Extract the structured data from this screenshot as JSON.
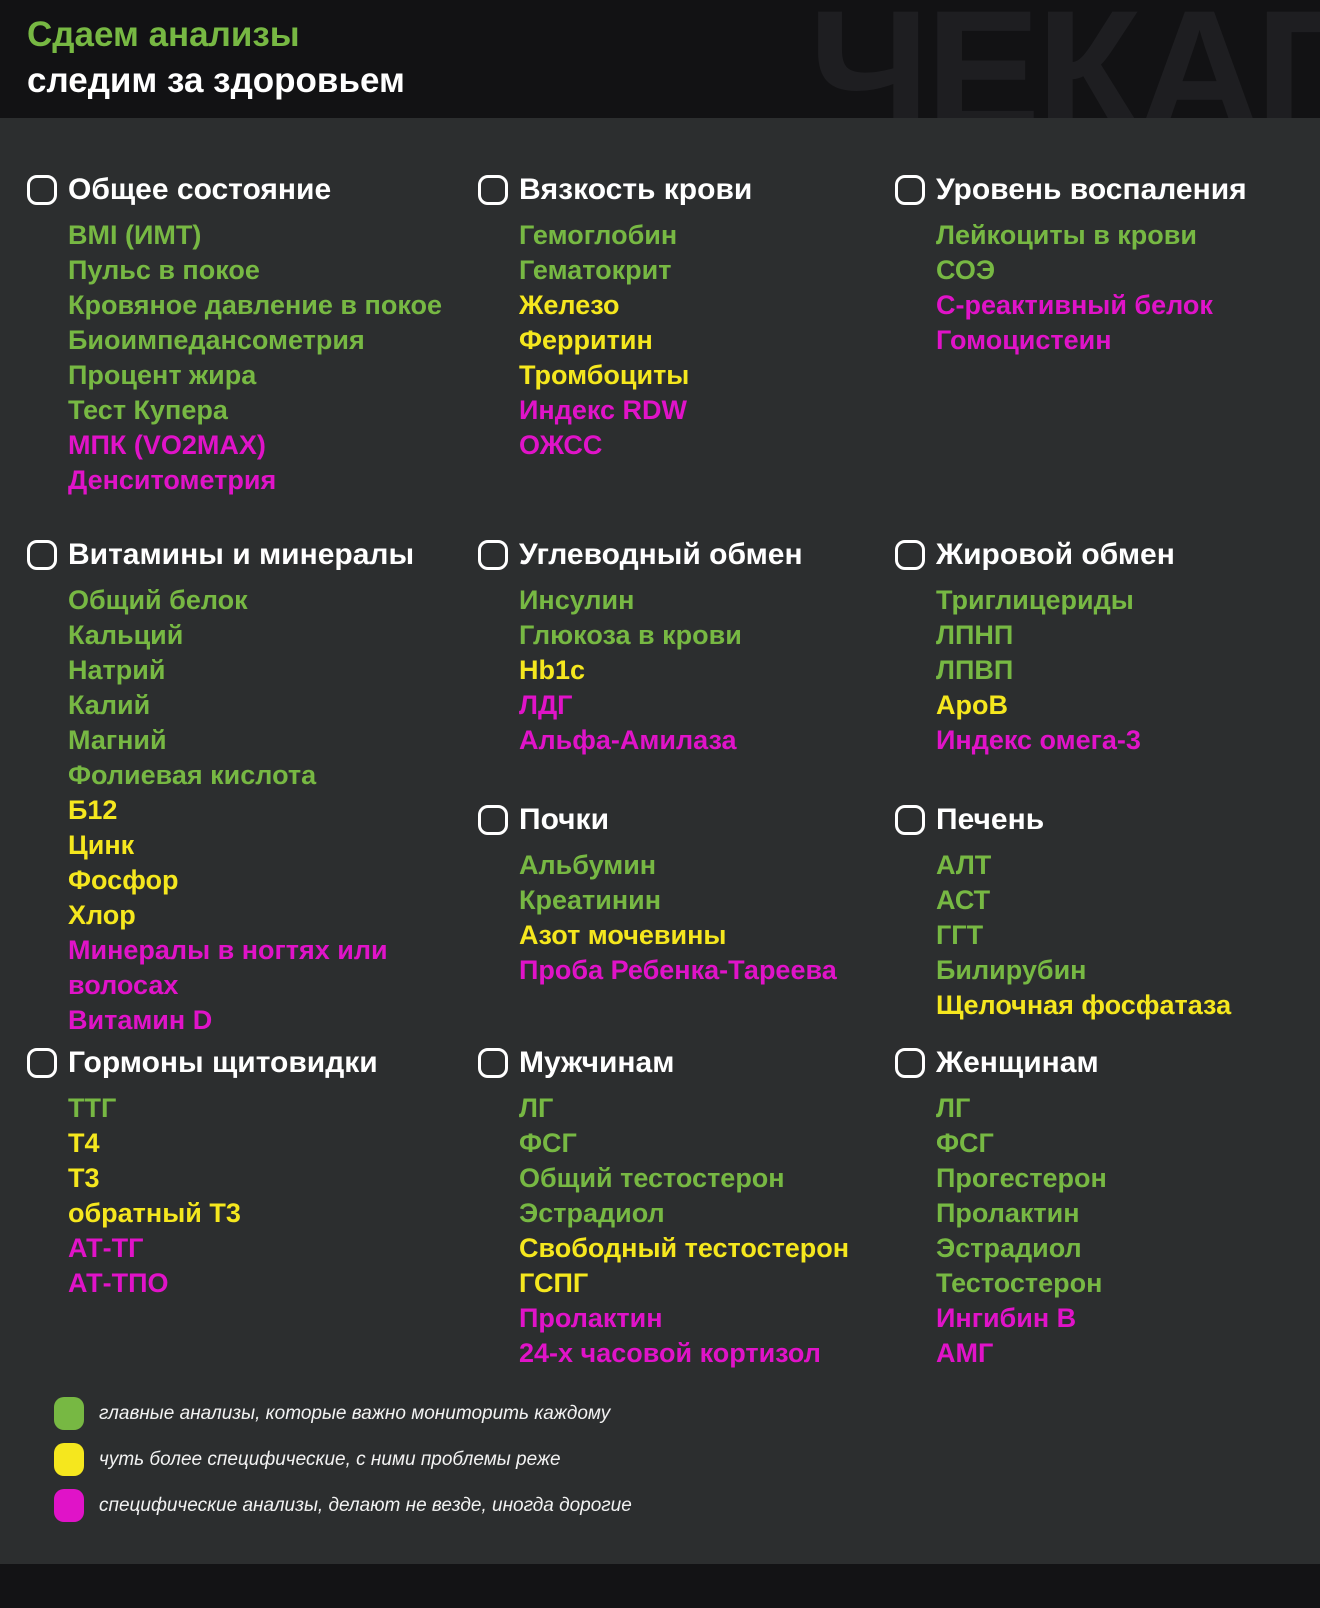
{
  "header": {
    "title_line1": "Сдаем анализы",
    "title_line2": "следим за здоровьем",
    "watermark": "ЧЕКАП"
  },
  "colors": {
    "core": "#77b843",
    "mid": "#f5e71e",
    "rare": "#e013c8"
  },
  "columns": [
    {
      "sections": [
        {
          "title": "Общее состояние",
          "items": [
            {
              "label": "BMI (ИМТ)",
              "level": "core"
            },
            {
              "label": "Пульс в покое",
              "level": "core"
            },
            {
              "label": "Кровяное давление в покое",
              "level": "core"
            },
            {
              "label": "Биоимпедансометрия",
              "level": "core"
            },
            {
              "label": "Процент жира",
              "level": "core"
            },
            {
              "label": "Тест Купера",
              "level": "core"
            },
            {
              "label": "МПК (VO2MAX)",
              "level": "rare"
            },
            {
              "label": "Денситометрия",
              "level": "rare"
            }
          ]
        },
        {
          "title": "Витамины и минералы",
          "items": [
            {
              "label": "Общий белок",
              "level": "core"
            },
            {
              "label": "Кальций",
              "level": "core"
            },
            {
              "label": "Натрий",
              "level": "core"
            },
            {
              "label": "Калий",
              "level": "core"
            },
            {
              "label": "Магний",
              "level": "core"
            },
            {
              "label": "Фолиевая кислота",
              "level": "core"
            },
            {
              "label": "Б12",
              "level": "mid"
            },
            {
              "label": "Цинк",
              "level": "mid"
            },
            {
              "label": "Фосфор",
              "level": "mid"
            },
            {
              "label": "Хлор",
              "level": "mid"
            },
            {
              "label": "Минералы в ногтях или волосах",
              "level": "rare"
            },
            {
              "label": "Витамин D",
              "level": "rare"
            }
          ]
        },
        {
          "title": "Гормоны щитовидки",
          "items": [
            {
              "label": "ТТГ",
              "level": "core"
            },
            {
              "label": "Т4",
              "level": "mid"
            },
            {
              "label": "Т3",
              "level": "mid"
            },
            {
              "label": "обратный Т3",
              "level": "mid"
            },
            {
              "label": "АТ-ТГ",
              "level": "rare"
            },
            {
              "label": "АТ-ТПО",
              "level": "rare"
            }
          ]
        }
      ]
    },
    {
      "sections": [
        {
          "title": "Вязкость крови",
          "items": [
            {
              "label": "Гемоглобин",
              "level": "core"
            },
            {
              "label": "Гематокрит",
              "level": "core"
            },
            {
              "label": "Железо",
              "level": "mid"
            },
            {
              "label": "Ферритин",
              "level": "mid"
            },
            {
              "label": "Тромбоциты",
              "level": "mid"
            },
            {
              "label": "Индекс RDW",
              "level": "rare"
            },
            {
              "label": "ОЖСС",
              "level": "rare"
            }
          ]
        },
        {
          "title": "Углеводный обмен",
          "items": [
            {
              "label": "Инсулин",
              "level": "core"
            },
            {
              "label": "Глюкоза в крови",
              "level": "core"
            },
            {
              "label": "Hb1c",
              "level": "mid"
            },
            {
              "label": "ЛДГ",
              "level": "rare"
            },
            {
              "label": "Альфа-Амилаза",
              "level": "rare"
            }
          ]
        },
        {
          "title": "Почки",
          "items": [
            {
              "label": "Альбумин",
              "level": "core"
            },
            {
              "label": "Креатинин",
              "level": "core"
            },
            {
              "label": "Азот мочевины",
              "level": "mid"
            },
            {
              "label": "Проба Ребенка-Тареева",
              "level": "rare"
            }
          ]
        },
        {
          "title": "Мужчинам",
          "items": [
            {
              "label": "ЛГ",
              "level": "core"
            },
            {
              "label": "ФСГ",
              "level": "core"
            },
            {
              "label": "Общий тестостерон",
              "level": "core"
            },
            {
              "label": "Эстрадиол",
              "level": "core"
            },
            {
              "label": "Свободный тестостерон",
              "level": "mid"
            },
            {
              "label": "ГСПГ",
              "level": "mid"
            },
            {
              "label": "Пролактин",
              "level": "rare"
            },
            {
              "label": "24-х часовой кортизол",
              "level": "rare"
            }
          ]
        }
      ]
    },
    {
      "sections": [
        {
          "title": "Уровень воспаления",
          "items": [
            {
              "label": "Лейкоциты в крови",
              "level": "core"
            },
            {
              "label": "СОЭ",
              "level": "core"
            },
            {
              "label": "С-реактивный белок",
              "level": "rare"
            },
            {
              "label": "Гомоцистеин",
              "level": "rare"
            }
          ]
        },
        {
          "title": "Жировой обмен",
          "items": [
            {
              "label": "Триглицериды",
              "level": "core"
            },
            {
              "label": "ЛПНП",
              "level": "core"
            },
            {
              "label": "ЛПВП",
              "level": "core"
            },
            {
              "label": "ApoB",
              "level": "mid"
            },
            {
              "label": "Индекс омега-3",
              "level": "rare"
            }
          ]
        },
        {
          "title": "Печень",
          "items": [
            {
              "label": "АЛТ",
              "level": "core"
            },
            {
              "label": "АСТ",
              "level": "core"
            },
            {
              "label": "ГГТ",
              "level": "core"
            },
            {
              "label": "Билирубин",
              "level": "core"
            },
            {
              "label": "Щелочная фосфатаза",
              "level": "mid"
            }
          ]
        },
        {
          "title": "Женщинам",
          "items": [
            {
              "label": "ЛГ",
              "level": "core"
            },
            {
              "label": "ФСГ",
              "level": "core"
            },
            {
              "label": "Прогестерон",
              "level": "core"
            },
            {
              "label": "Пролактин",
              "level": "core"
            },
            {
              "label": "Эстрадиол",
              "level": "core"
            },
            {
              "label": "Тестостерон",
              "level": "core"
            },
            {
              "label": "Ингибин B",
              "level": "rare"
            },
            {
              "label": "АМГ",
              "level": "rare"
            }
          ]
        }
      ]
    }
  ],
  "legend": [
    {
      "level": "core",
      "text": "главные анализы, которые важно мониторить каждому"
    },
    {
      "level": "mid",
      "text": "чуть более специфические, с ними проблемы реже"
    },
    {
      "level": "rare",
      "text": "специфические анализы, делают не везде, иногда дорогие"
    }
  ]
}
